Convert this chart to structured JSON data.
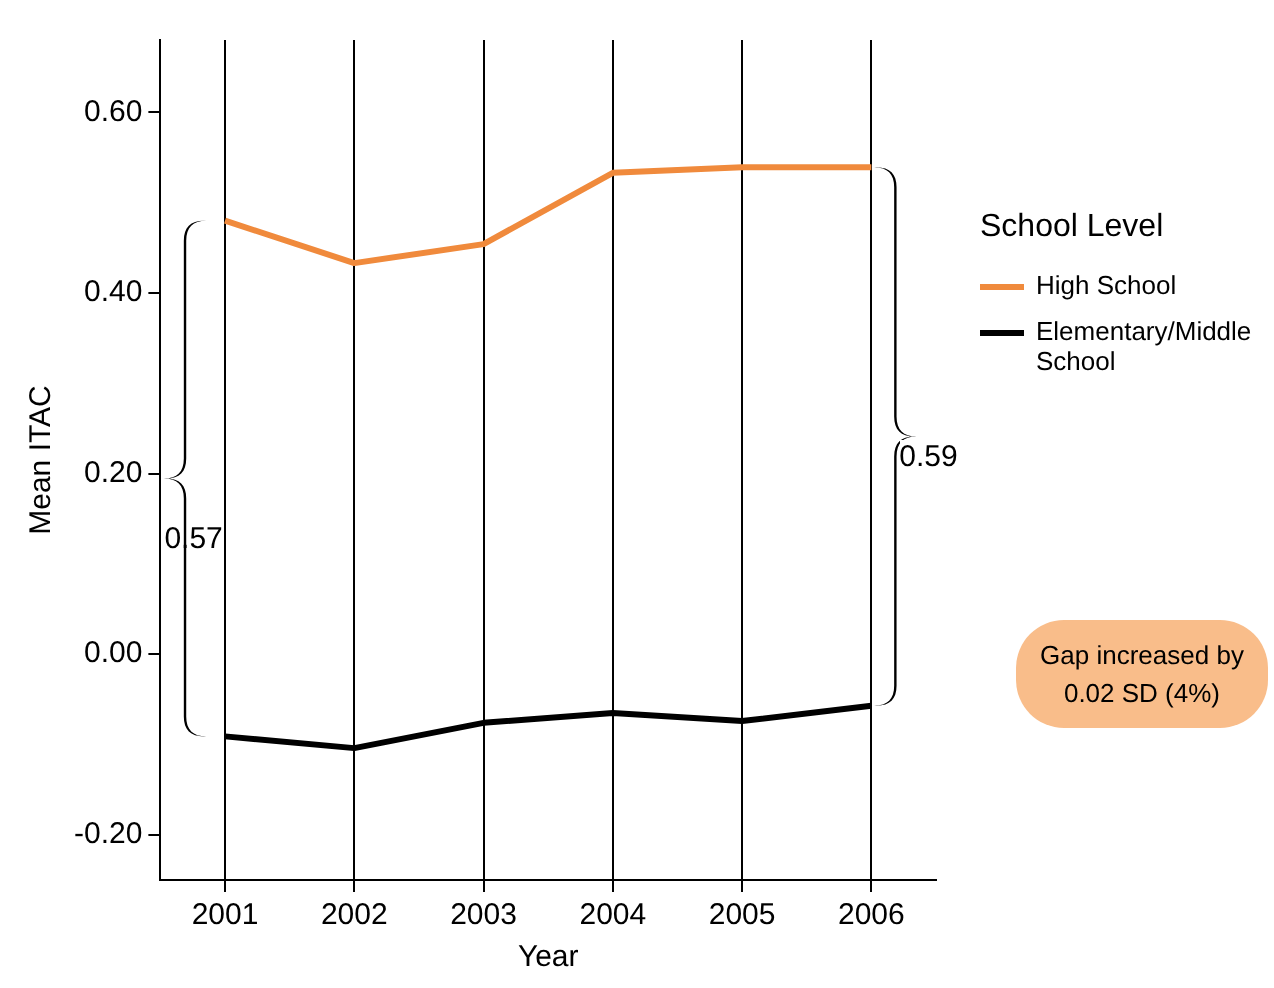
{
  "chart_data": {
    "type": "line",
    "xlabel": "Year",
    "ylabel": "Mean ITAC",
    "legend_title": "School Level",
    "categories": [
      "2001",
      "2002",
      "2003",
      "2004",
      "2005",
      "2006"
    ],
    "series": [
      {
        "name": "High School",
        "color": "#f08a3c",
        "values": [
          0.48,
          0.433,
          0.454,
          0.533,
          0.539,
          0.539
        ]
      },
      {
        "name": "Elementary/Middle School",
        "color": "#000000",
        "values": [
          -0.091,
          -0.104,
          -0.076,
          -0.065,
          -0.074,
          -0.057
        ]
      }
    ],
    "ylim": [
      -0.25,
      0.68
    ],
    "yticks": [
      {
        "value": -0.2,
        "label": "-0.20"
      },
      {
        "value": 0,
        "label": "0.00"
      },
      {
        "value": 0.2,
        "label": "0.20"
      },
      {
        "value": 0.4,
        "label": "0.40"
      },
      {
        "value": 0.6,
        "label": "0.60"
      }
    ],
    "grid": "x",
    "legend": "top right",
    "marker": "none",
    "line_style": "solid",
    "annotations": [
      "0.57",
      "0.59",
      "Gap increased by 0.02 SD (4%)"
    ]
  }
}
